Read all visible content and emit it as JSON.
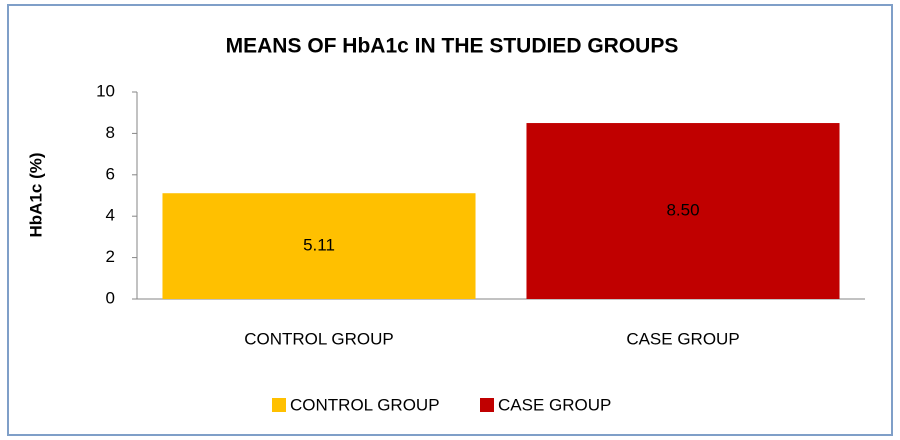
{
  "chart_data": {
    "type": "bar",
    "title": "MEANS OF HbA1c IN THE STUDIED GROUPS",
    "y_label": "HbA1c (%)",
    "categories": [
      "CONTROL GROUP",
      "CASE GROUP"
    ],
    "values": [
      5.11,
      8.5
    ],
    "value_labels": [
      "5.11",
      "8.50"
    ],
    "colors": [
      "#ffc000",
      "#c00000"
    ],
    "ylim": [
      0,
      10
    ],
    "yticks": [
      0,
      2,
      4,
      6,
      8,
      10
    ],
    "grid": false,
    "legend": "bottom"
  }
}
